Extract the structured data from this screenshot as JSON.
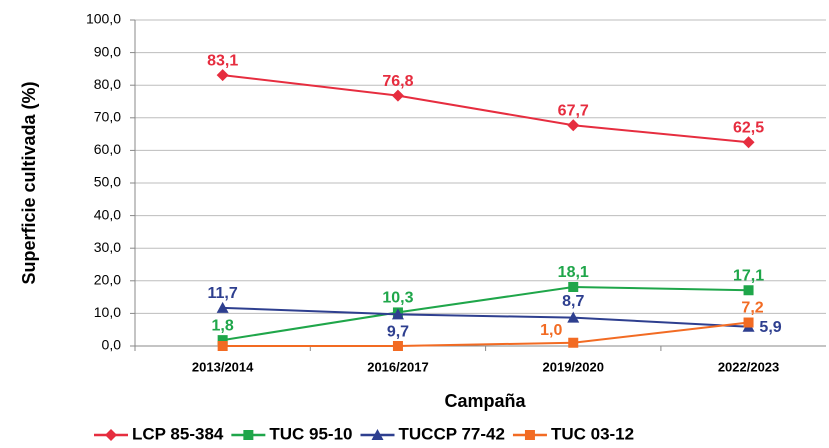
{
  "chart_data": {
    "type": "line",
    "xlabel": "Campaña",
    "ylabel": "Superficie cultivada (%)",
    "categories": [
      "2013/2014",
      "2016/2017",
      "2019/2020",
      "2022/2023"
    ],
    "series": [
      {
        "name": "LCP 85-384",
        "color": "#e62d3f",
        "marker": "diamond",
        "values": [
          83.1,
          76.8,
          67.7,
          62.5
        ],
        "value_labels": [
          "83,1",
          "76,8",
          "67,7",
          "62,5"
        ]
      },
      {
        "name": "TUC 95-10",
        "color": "#1fa64a",
        "marker": "square",
        "values": [
          1.8,
          10.3,
          18.1,
          17.1
        ],
        "value_labels": [
          "1,8",
          "10,3",
          "18,1",
          "17,1"
        ]
      },
      {
        "name": "TUCCP 77-42",
        "color": "#2e3f8f",
        "marker": "triangle",
        "values": [
          11.7,
          9.7,
          8.7,
          5.9
        ],
        "value_labels": [
          "11,7",
          "9,7",
          "8,7",
          "5,9"
        ]
      },
      {
        "name": "TUC 03-12",
        "color": "#f26b23",
        "marker": "square",
        "values": [
          0,
          0,
          1.0,
          7.2
        ],
        "value_labels": [
          null,
          null,
          "1,0",
          "7,2"
        ]
      }
    ],
    "ylim": [
      0,
      100
    ],
    "yticks": [
      {
        "value": 0,
        "label": "0,0"
      },
      {
        "value": 10,
        "label": "10,0"
      },
      {
        "value": 20,
        "label": "20,0"
      },
      {
        "value": 30,
        "label": "30,0"
      },
      {
        "value": 40,
        "label": "40,0"
      },
      {
        "value": 50,
        "label": "50,0"
      },
      {
        "value": 60,
        "label": "60,0"
      },
      {
        "value": 70,
        "label": "70,0"
      },
      {
        "value": 80,
        "label": "80,0"
      },
      {
        "value": 90,
        "label": "90,0"
      },
      {
        "value": 100,
        "label": "100,0"
      }
    ],
    "grid": true,
    "legend": "bottom"
  }
}
